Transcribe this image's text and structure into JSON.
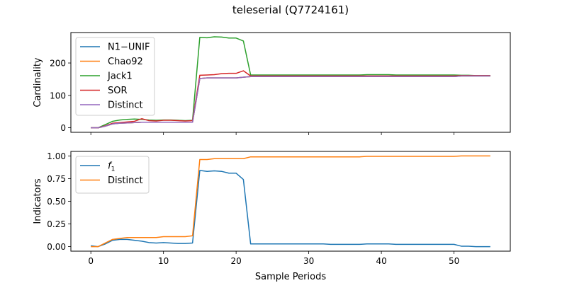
{
  "figure": {
    "title": "teleserial (Q7724161)",
    "xlabel": "Sample Periods"
  },
  "chart_data": [
    {
      "type": "line",
      "title": "",
      "xlabel": "",
      "ylabel": "Cardinality",
      "xlim": [
        -2.75,
        57.75
      ],
      "ylim": [
        -14,
        294
      ],
      "xticks": [
        0,
        10,
        20,
        30,
        40,
        50
      ],
      "yticks": [
        0,
        100,
        200
      ],
      "show_xtick_labels": false,
      "grid": false,
      "legend": "upper-left",
      "series": [
        {
          "name": "N1−UNIF",
          "color": "#1f77b4",
          "x": [
            0,
            1,
            2,
            3,
            4,
            5,
            6,
            7,
            8,
            9,
            10,
            11,
            12,
            13,
            14,
            15,
            16,
            17,
            18,
            19,
            20,
            21,
            22,
            23,
            24,
            25,
            26,
            27,
            28,
            29,
            30,
            31,
            32,
            33,
            34,
            35,
            36,
            37,
            38,
            39,
            40,
            41,
            42,
            43,
            44,
            45,
            46,
            47,
            48,
            49,
            50,
            51,
            52,
            53,
            54,
            55
          ],
          "y": [
            0,
            0,
            5,
            12,
            14,
            15,
            16,
            17,
            17,
            17,
            17,
            17,
            17,
            17,
            17,
            152,
            154,
            154,
            154,
            154,
            154,
            156,
            158,
            158,
            158,
            158,
            158,
            158,
            158,
            158,
            158,
            158,
            158,
            158,
            158,
            158,
            158,
            158,
            158,
            158,
            158,
            158,
            158,
            158,
            158,
            158,
            158,
            158,
            158,
            158,
            158,
            160,
            160,
            160,
            160,
            160
          ]
        },
        {
          "name": "Chao92",
          "color": "#ff7f0e",
          "x": [
            0,
            1,
            2,
            3,
            4,
            5,
            6,
            7,
            8,
            9,
            10,
            11,
            12,
            13,
            14,
            15,
            16,
            17,
            18,
            19,
            20,
            21,
            22,
            23,
            24,
            25,
            26,
            27,
            28,
            29,
            30,
            31,
            32,
            33,
            34,
            35,
            36,
            37,
            38,
            39,
            40,
            41,
            42,
            43,
            44,
            45,
            46,
            47,
            48,
            49,
            50,
            51,
            52,
            53,
            54,
            55
          ],
          "y": [
            0,
            0,
            5,
            12,
            14,
            15,
            16,
            17,
            17,
            17,
            17,
            17,
            17,
            17,
            17,
            152,
            154,
            154,
            154,
            154,
            154,
            156,
            158,
            158,
            158,
            158,
            158,
            158,
            158,
            158,
            158,
            158,
            158,
            158,
            158,
            158,
            158,
            158,
            158,
            158,
            158,
            158,
            158,
            158,
            158,
            158,
            158,
            158,
            158,
            158,
            158,
            160,
            160,
            160,
            160,
            160
          ]
        },
        {
          "name": "Jack1",
          "color": "#2ca02c",
          "x": [
            0,
            1,
            2,
            3,
            4,
            5,
            6,
            7,
            8,
            9,
            10,
            11,
            12,
            13,
            14,
            15,
            16,
            17,
            18,
            19,
            20,
            21,
            22,
            23,
            24,
            25,
            26,
            27,
            28,
            29,
            30,
            31,
            32,
            33,
            34,
            35,
            36,
            37,
            38,
            39,
            40,
            41,
            42,
            43,
            44,
            45,
            46,
            47,
            48,
            49,
            50,
            51,
            52,
            53,
            54,
            55
          ],
          "y": [
            0,
            0,
            10,
            20,
            24,
            26,
            27,
            26,
            24,
            23,
            24,
            24,
            23,
            22,
            23,
            279,
            278,
            281,
            280,
            277,
            277,
            268,
            163,
            163,
            163,
            163,
            163,
            163,
            163,
            163,
            163,
            163,
            163,
            163,
            163,
            163,
            163,
            163,
            164,
            164,
            164,
            164,
            163,
            163,
            163,
            163,
            163,
            163,
            163,
            163,
            163,
            162,
            162,
            161,
            161,
            161
          ]
        },
        {
          "name": "SOR",
          "color": "#d62728",
          "x": [
            0,
            1,
            2,
            3,
            4,
            5,
            6,
            7,
            8,
            9,
            10,
            11,
            12,
            13,
            14,
            15,
            16,
            17,
            18,
            19,
            20,
            21,
            22,
            23,
            24,
            25,
            26,
            27,
            28,
            29,
            30,
            31,
            32,
            33,
            34,
            35,
            36,
            37,
            38,
            39,
            40,
            41,
            42,
            43,
            44,
            45,
            46,
            47,
            48,
            49,
            50,
            51,
            52,
            53,
            54,
            55
          ],
          "y": [
            0,
            0,
            6,
            14,
            16,
            18,
            20,
            28,
            22,
            21,
            23,
            23,
            22,
            21,
            22,
            162,
            163,
            164,
            167,
            168,
            168,
            176,
            160,
            160,
            160,
            160,
            160,
            160,
            160,
            160,
            160,
            160,
            160,
            160,
            160,
            160,
            160,
            160,
            160,
            160,
            160,
            160,
            160,
            160,
            160,
            160,
            160,
            160,
            160,
            160,
            160,
            161,
            161,
            161,
            161,
            161
          ]
        },
        {
          "name": "Distinct",
          "color": "#9467bd",
          "x": [
            0,
            1,
            2,
            3,
            4,
            5,
            6,
            7,
            8,
            9,
            10,
            11,
            12,
            13,
            14,
            15,
            16,
            17,
            18,
            19,
            20,
            21,
            22,
            23,
            24,
            25,
            26,
            27,
            28,
            29,
            30,
            31,
            32,
            33,
            34,
            35,
            36,
            37,
            38,
            39,
            40,
            41,
            42,
            43,
            44,
            45,
            46,
            47,
            48,
            49,
            50,
            51,
            52,
            53,
            54,
            55
          ],
          "y": [
            0,
            0,
            5,
            12,
            14,
            15,
            16,
            17,
            17,
            17,
            17,
            17,
            17,
            17,
            17,
            152,
            154,
            154,
            154,
            154,
            154,
            156,
            158,
            158,
            158,
            158,
            158,
            158,
            158,
            158,
            158,
            158,
            158,
            158,
            158,
            158,
            158,
            158,
            158,
            158,
            158,
            158,
            158,
            158,
            158,
            158,
            158,
            158,
            158,
            158,
            158,
            160,
            160,
            160,
            160,
            160
          ]
        }
      ]
    },
    {
      "type": "line",
      "title": "",
      "xlabel": "Sample Periods",
      "ylabel": "Indicators",
      "xlim": [
        -2.75,
        57.75
      ],
      "ylim": [
        -0.05,
        1.05
      ],
      "xticks": [
        0,
        10,
        20,
        30,
        40,
        50
      ],
      "yticks": [
        0.0,
        0.25,
        0.5,
        0.75,
        1.0
      ],
      "ytick_labels": [
        "0.00",
        "0.25",
        "0.50",
        "0.75",
        "1.00"
      ],
      "show_xtick_labels": true,
      "grid": false,
      "legend": "upper-left",
      "series": [
        {
          "name": "f1",
          "color": "#1f77b4",
          "x": [
            0,
            1,
            2,
            3,
            4,
            5,
            6,
            7,
            8,
            9,
            10,
            11,
            12,
            13,
            14,
            15,
            16,
            17,
            18,
            19,
            20,
            21,
            22,
            23,
            24,
            25,
            26,
            27,
            28,
            29,
            30,
            31,
            32,
            33,
            34,
            35,
            36,
            37,
            38,
            39,
            40,
            41,
            42,
            43,
            44,
            45,
            46,
            47,
            48,
            49,
            50,
            51,
            52,
            53,
            54,
            55
          ],
          "y": [
            0.01,
            0.0,
            0.03,
            0.07,
            0.08,
            0.08,
            0.07,
            0.06,
            0.045,
            0.04,
            0.045,
            0.04,
            0.035,
            0.035,
            0.04,
            0.84,
            0.83,
            0.835,
            0.83,
            0.81,
            0.81,
            0.74,
            0.03,
            0.03,
            0.03,
            0.03,
            0.03,
            0.03,
            0.03,
            0.03,
            0.03,
            0.03,
            0.03,
            0.025,
            0.025,
            0.025,
            0.025,
            0.025,
            0.03,
            0.03,
            0.03,
            0.03,
            0.025,
            0.025,
            0.025,
            0.025,
            0.025,
            0.025,
            0.025,
            0.025,
            0.025,
            0.005,
            0.005,
            0.0,
            0.0,
            0.0
          ]
        },
        {
          "name": "Distinct",
          "color": "#ff7f0e",
          "x": [
            0,
            1,
            2,
            3,
            4,
            5,
            6,
            7,
            8,
            9,
            10,
            11,
            12,
            13,
            14,
            15,
            16,
            17,
            18,
            19,
            20,
            21,
            22,
            23,
            24,
            25,
            26,
            27,
            28,
            29,
            30,
            31,
            32,
            33,
            34,
            35,
            36,
            37,
            38,
            39,
            40,
            41,
            42,
            43,
            44,
            45,
            46,
            47,
            48,
            49,
            50,
            51,
            52,
            53,
            54,
            55
          ],
          "y": [
            0.0,
            0.0,
            0.04,
            0.08,
            0.09,
            0.1,
            0.1,
            0.1,
            0.1,
            0.1,
            0.11,
            0.11,
            0.11,
            0.11,
            0.12,
            0.96,
            0.96,
            0.97,
            0.97,
            0.97,
            0.97,
            0.97,
            0.99,
            0.99,
            0.99,
            0.99,
            0.99,
            0.99,
            0.99,
            0.99,
            0.99,
            0.99,
            0.99,
            0.99,
            0.99,
            0.99,
            0.99,
            0.99,
            0.995,
            0.995,
            0.995,
            0.995,
            0.995,
            0.995,
            0.995,
            0.995,
            0.995,
            0.995,
            0.995,
            0.995,
            0.995,
            1.0,
            1.0,
            1.0,
            1.0,
            1.0
          ]
        }
      ]
    }
  ]
}
